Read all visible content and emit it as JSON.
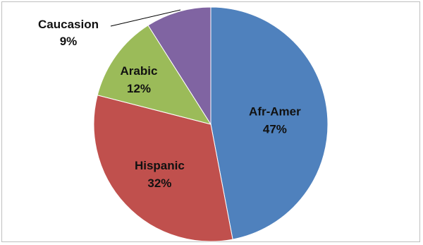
{
  "chart_data": {
    "type": "pie",
    "title": "",
    "slices": [
      {
        "label": "Afr-Amer",
        "value": 47,
        "value_label": "47%",
        "color": "#4f81bd"
      },
      {
        "label": "Hispanic",
        "value": 32,
        "value_label": "32%",
        "color": "#c0504d"
      },
      {
        "label": "Arabic",
        "value": 12,
        "value_label": "12%",
        "color": "#9bbb59"
      },
      {
        "label": "Caucasion",
        "value": 9,
        "value_label": "9%",
        "color": "#8064a2"
      }
    ],
    "start_angle": "12 o'clock",
    "direction": "clockwise",
    "legend": "none",
    "labels": "on slices, category name above percentage; Caucasion label outside with leader line"
  }
}
